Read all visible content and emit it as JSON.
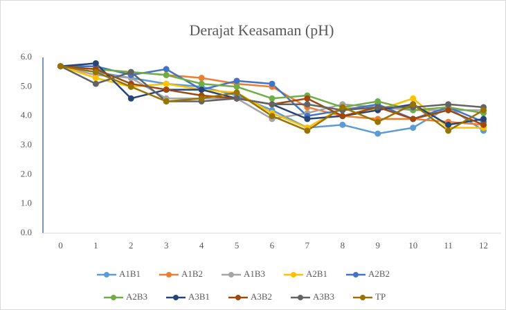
{
  "chart_data": {
    "type": "line",
    "title": "Derajat Keasaman (pH)",
    "categories": [
      "0",
      "1",
      "2",
      "3",
      "4",
      "5",
      "6",
      "7",
      "8",
      "9",
      "10",
      "11",
      "12"
    ],
    "series": [
      {
        "name": "A1B1",
        "color": "#5B9BD5",
        "values": [
          5.7,
          5.5,
          5.3,
          5.1,
          5.0,
          4.7,
          4.2,
          3.6,
          3.7,
          3.4,
          3.6,
          4.3,
          3.5
        ]
      },
      {
        "name": "A1B2",
        "color": "#ED7D31",
        "values": [
          5.7,
          5.6,
          5.5,
          5.4,
          5.3,
          5.1,
          5.0,
          4.3,
          4.0,
          3.9,
          3.9,
          3.8,
          3.7
        ]
      },
      {
        "name": "A1B3",
        "color": "#A5A5A5",
        "values": [
          5.7,
          5.4,
          5.3,
          4.6,
          4.6,
          4.6,
          3.9,
          4.1,
          4.4,
          4.3,
          4.2,
          4.2,
          4.2
        ]
      },
      {
        "name": "A2B1",
        "color": "#FFC000",
        "values": [
          5.7,
          5.3,
          5.0,
          5.1,
          4.9,
          4.8,
          4.1,
          3.6,
          4.3,
          4.2,
          4.6,
          3.6,
          3.6
        ]
      },
      {
        "name": "A2B2",
        "color": "#4472C4",
        "values": [
          5.7,
          5.7,
          5.4,
          5.6,
          4.9,
          5.2,
          5.1,
          4.0,
          4.2,
          4.4,
          3.9,
          4.3,
          3.8
        ]
      },
      {
        "name": "A2B3",
        "color": "#70AD47",
        "values": [
          5.7,
          5.6,
          5.5,
          5.4,
          5.1,
          5.0,
          4.6,
          4.7,
          4.3,
          4.5,
          4.2,
          4.3,
          4.1
        ]
      },
      {
        "name": "A3B1",
        "color": "#264478",
        "values": [
          5.7,
          5.8,
          4.6,
          4.9,
          4.9,
          4.6,
          4.4,
          3.9,
          4.0,
          4.2,
          4.4,
          3.7,
          3.9
        ]
      },
      {
        "name": "A3B2",
        "color": "#9E480E",
        "values": [
          5.7,
          5.6,
          5.1,
          4.9,
          4.7,
          4.6,
          4.4,
          4.6,
          4.0,
          4.3,
          3.9,
          4.2,
          3.7
        ]
      },
      {
        "name": "A3B3",
        "color": "#636363",
        "values": [
          5.7,
          5.1,
          5.5,
          4.5,
          4.5,
          4.6,
          4.4,
          4.4,
          4.2,
          4.3,
          4.3,
          4.4,
          4.3
        ]
      },
      {
        "name": "TP",
        "color": "#997300",
        "values": [
          5.7,
          5.5,
          5.0,
          4.5,
          4.6,
          4.8,
          4.0,
          3.5,
          4.3,
          3.8,
          4.4,
          3.5,
          4.2
        ]
      }
    ],
    "ylim": [
      0,
      6
    ],
    "yticks": [
      {
        "value": 0,
        "label": "0.0"
      },
      {
        "value": 1,
        "label": "1.0"
      },
      {
        "value": 2,
        "label": "2.0"
      },
      {
        "value": 3,
        "label": "3.0"
      },
      {
        "value": 4,
        "label": "4.0"
      },
      {
        "value": 5,
        "label": "5.0"
      },
      {
        "value": 6,
        "label": "6.0"
      }
    ],
    "grid": false,
    "legend": "bottom"
  }
}
